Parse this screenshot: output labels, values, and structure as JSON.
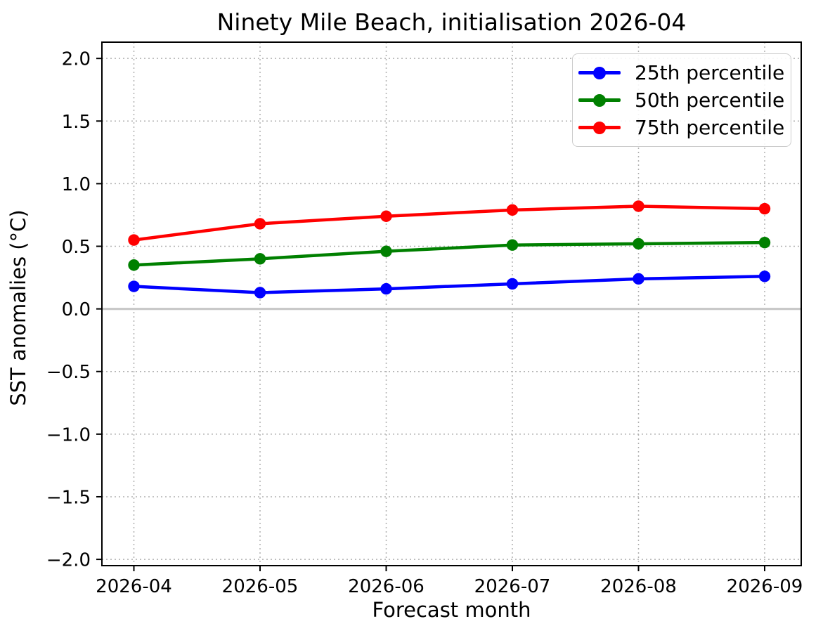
{
  "chart_data": {
    "type": "line",
    "title": "Ninety Mile Beach, initialisation 2026-04",
    "xlabel": "Forecast month",
    "ylabel": "SST anomalies (°C)",
    "x_categories": [
      "2026-04",
      "2026-05",
      "2026-06",
      "2026-07",
      "2026-08",
      "2026-09"
    ],
    "series": [
      {
        "name": "25th percentile",
        "color": "#0000FF",
        "values": [
          0.18,
          0.13,
          0.16,
          0.2,
          0.24,
          0.26
        ]
      },
      {
        "name": "50th percentile",
        "color": "#008000",
        "values": [
          0.35,
          0.4,
          0.46,
          0.51,
          0.52,
          0.53
        ]
      },
      {
        "name": "75th percentile",
        "color": "#FF0000",
        "values": [
          0.55,
          0.68,
          0.74,
          0.79,
          0.82,
          0.8
        ]
      }
    ],
    "ylim": [
      -2.05,
      2.13
    ],
    "yticks": [
      {
        "value": -2.0,
        "label": "−2.0"
      },
      {
        "value": -1.5,
        "label": "−1.5"
      },
      {
        "value": -1.0,
        "label": "−1.0"
      },
      {
        "value": -0.5,
        "label": "−0.5"
      },
      {
        "value": 0.0,
        "label": "0.0"
      },
      {
        "value": 0.5,
        "label": "0.5"
      },
      {
        "value": 1.0,
        "label": "1.0"
      },
      {
        "value": 1.5,
        "label": "1.5"
      },
      {
        "value": 2.0,
        "label": "2.0"
      }
    ],
    "zero_line": {
      "value": 0.0,
      "color": "#c9c9c9"
    },
    "grid": {
      "on": true,
      "style": "dotted",
      "color": "#b0b0b0"
    },
    "legend": {
      "position": "upper right"
    },
    "colors": {
      "spine": "#000000",
      "legend_border": "#cccccc"
    }
  }
}
